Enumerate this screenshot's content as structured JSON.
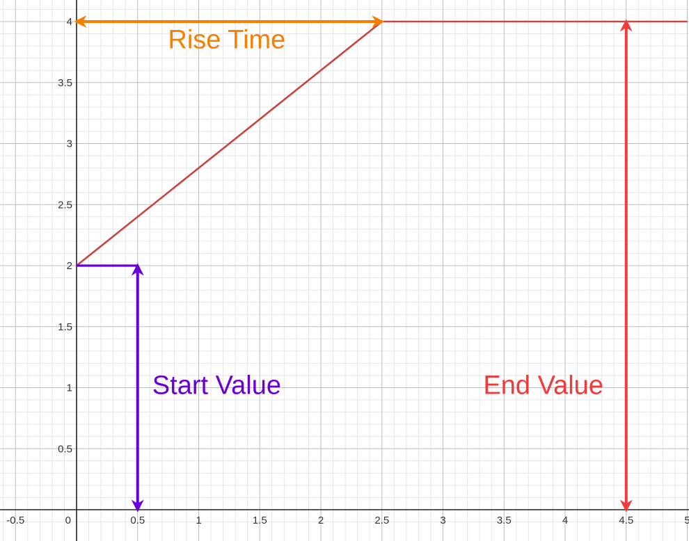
{
  "chart_data": {
    "type": "line",
    "title": "",
    "xlabel": "",
    "ylabel": "",
    "xlim": [
      -0.62,
      5.0
    ],
    "ylim": [
      -0.1,
      4.15
    ],
    "grid": true,
    "x_ticks": [
      {
        "value": -0.5,
        "label": "-0.5"
      },
      {
        "value": 0,
        "label": "0"
      },
      {
        "value": 0.5,
        "label": "0.5"
      },
      {
        "value": 1,
        "label": "1"
      },
      {
        "value": 1.5,
        "label": "1.5"
      },
      {
        "value": 2,
        "label": "2"
      },
      {
        "value": 2.5,
        "label": "2.5"
      },
      {
        "value": 3,
        "label": "3"
      },
      {
        "value": 3.5,
        "label": "3.5"
      },
      {
        "value": 4,
        "label": "4"
      },
      {
        "value": 4.5,
        "label": "4.5"
      },
      {
        "value": 5,
        "label": "5"
      }
    ],
    "y_ticks": [
      {
        "value": 0.5,
        "label": "0.5"
      },
      {
        "value": 1,
        "label": "1"
      },
      {
        "value": 1.5,
        "label": "1.5"
      },
      {
        "value": 2,
        "label": "2"
      },
      {
        "value": 2.5,
        "label": "2.5"
      },
      {
        "value": 3,
        "label": "3"
      },
      {
        "value": 3.5,
        "label": "3.5"
      },
      {
        "value": 4,
        "label": "4"
      }
    ],
    "series": [
      {
        "color": "#c74440",
        "points": [
          [
            0,
            2
          ],
          [
            2.5,
            4
          ],
          [
            5,
            4
          ]
        ]
      }
    ],
    "segments": [
      {
        "color": "#6a00d8",
        "points": [
          [
            0,
            2
          ],
          [
            0.5,
            2
          ]
        ]
      }
    ],
    "arrows": [
      {
        "color": "#f77f00",
        "from": [
          0,
          4
        ],
        "to": [
          2.5,
          4
        ]
      },
      {
        "color": "#6a00d8",
        "from": [
          0.5,
          2
        ],
        "to": [
          0.5,
          0
        ]
      },
      {
        "color": "#f23a3a",
        "from": [
          4.5,
          4
        ],
        "to": [
          4.5,
          0
        ]
      }
    ],
    "annotations": [
      {
        "text": "Rise Time",
        "x": 1.23,
        "y": 3.78,
        "anchor": "middle",
        "color": "#f77f00"
      },
      {
        "text": "Start Value",
        "x": 0.62,
        "y": 0.95,
        "anchor": "start",
        "color": "#6a00d8"
      },
      {
        "text": "End Value",
        "x": 3.33,
        "y": 0.95,
        "anchor": "start",
        "color": "#f23a3a"
      }
    ]
  }
}
